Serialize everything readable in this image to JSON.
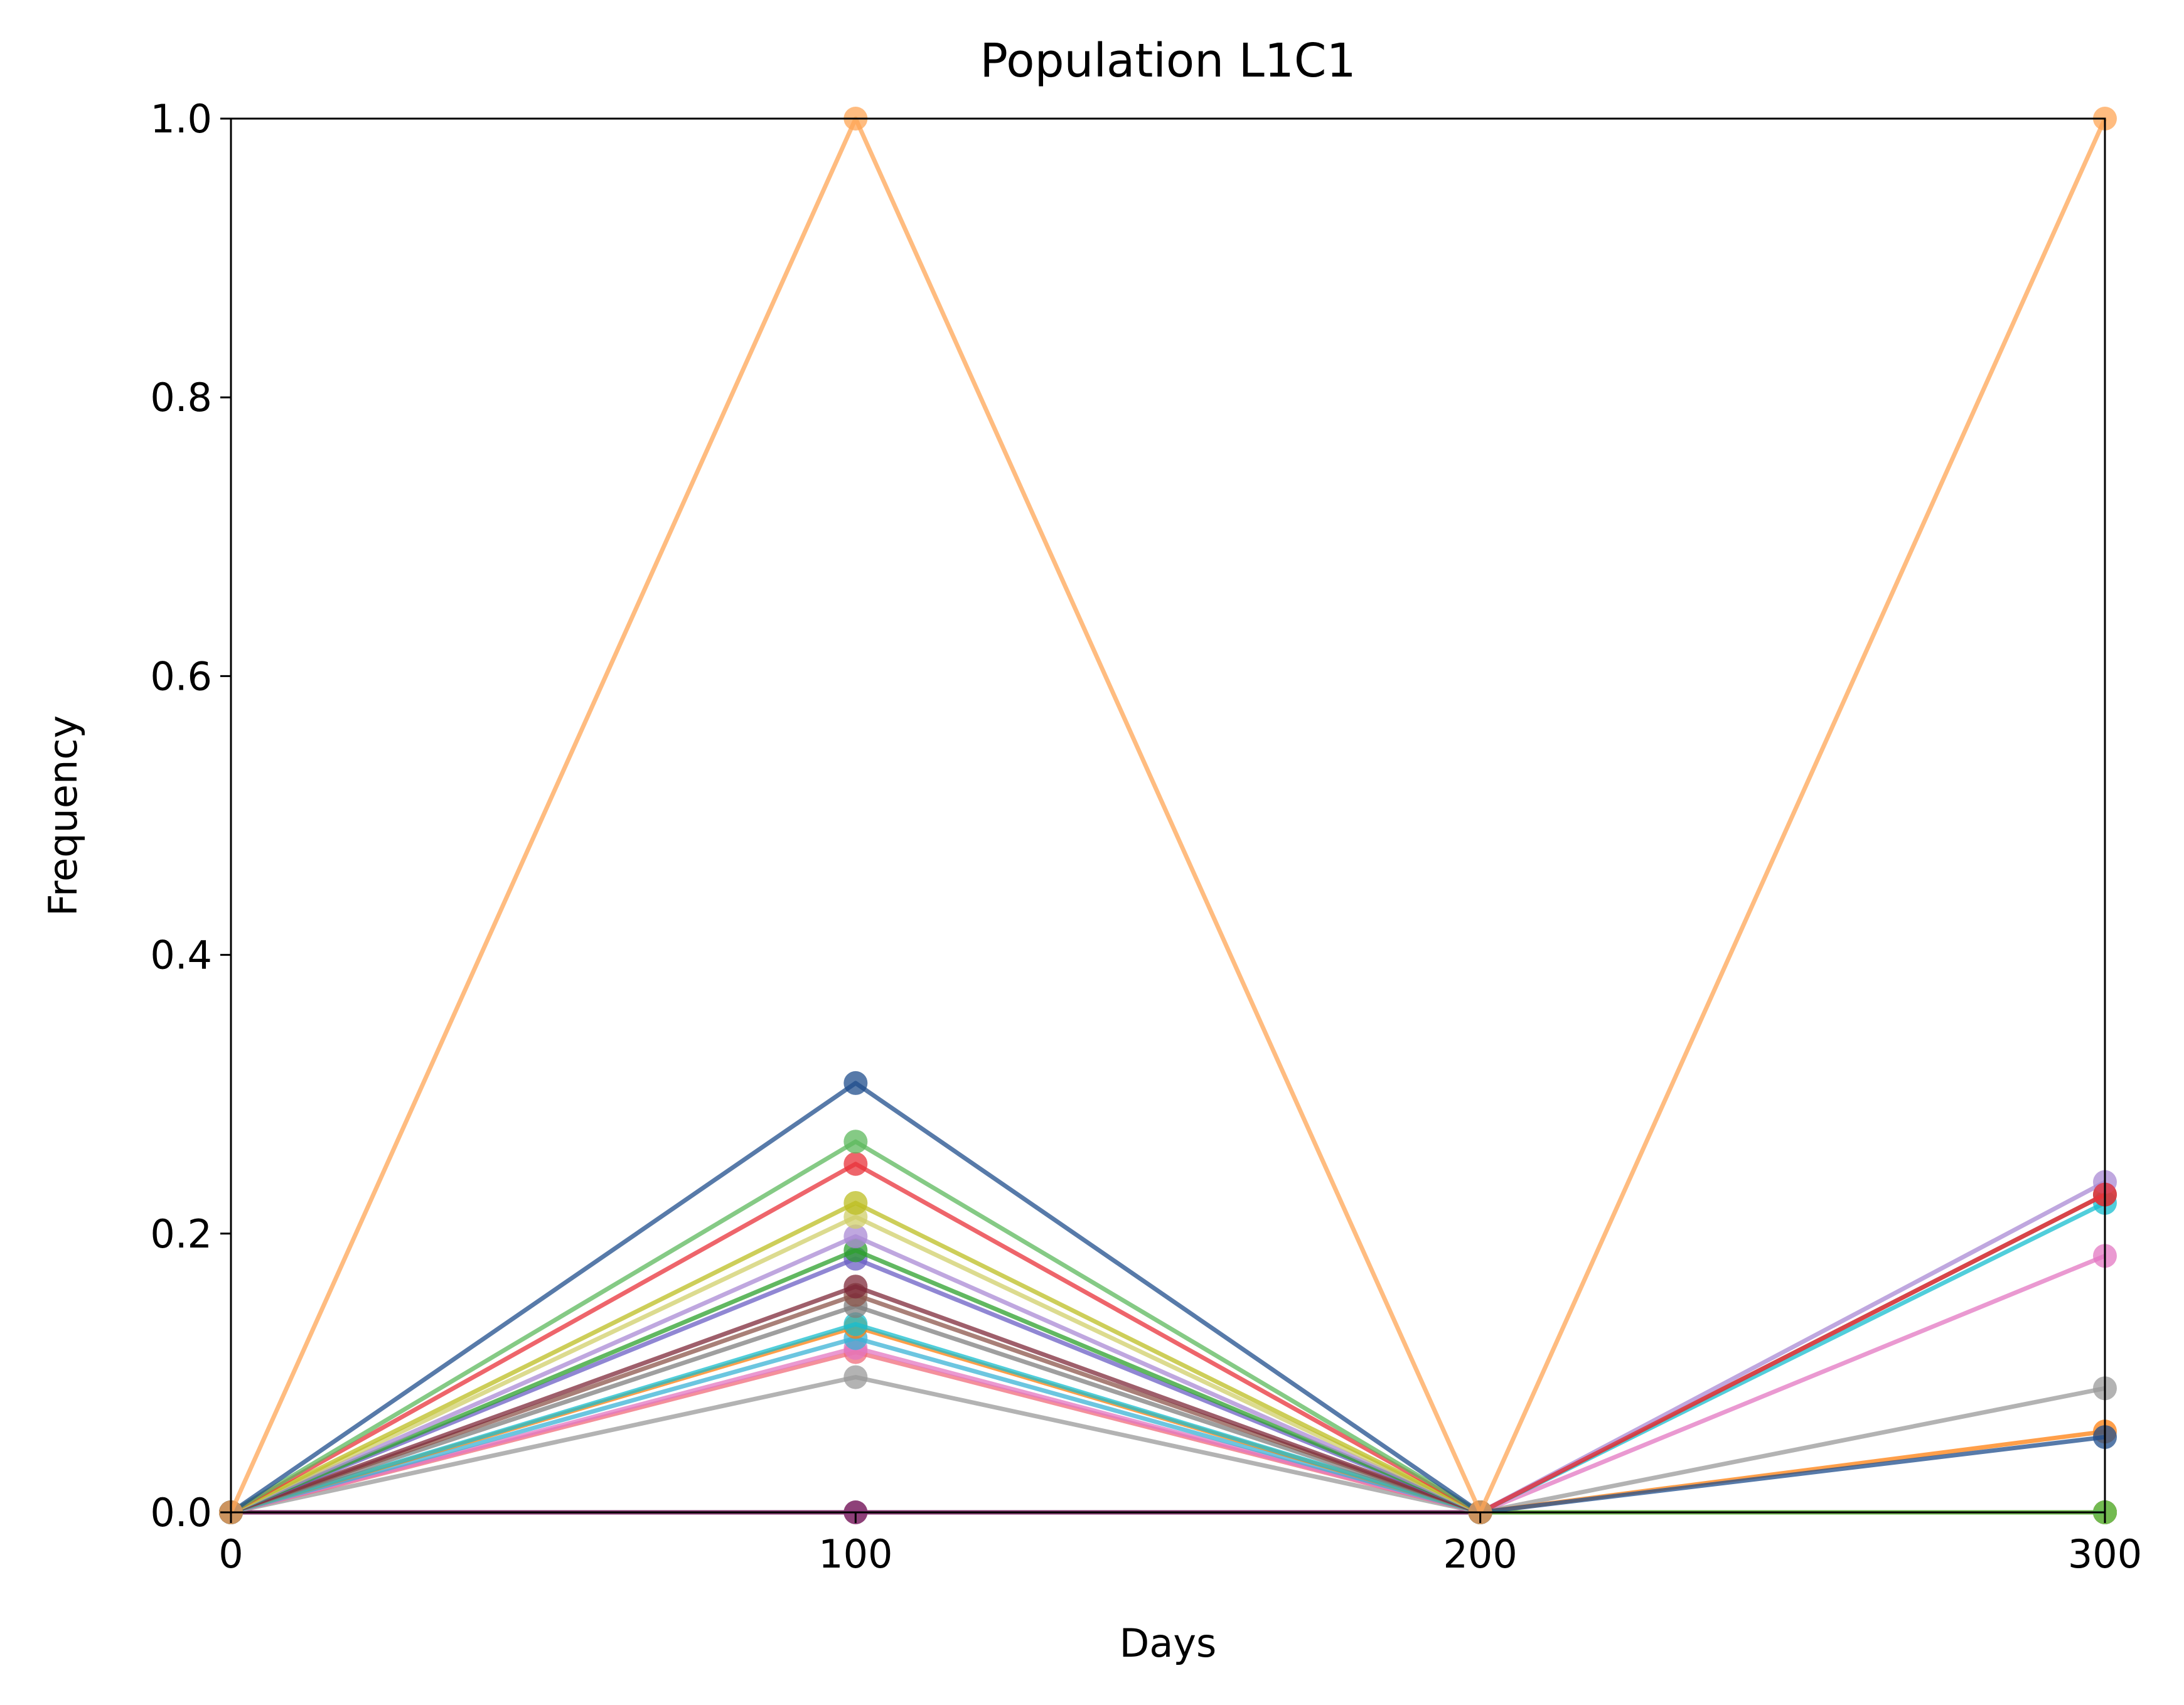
{
  "chart_data": {
    "type": "line",
    "title": "Population L1C1",
    "xlabel": "Days",
    "ylabel": "Frequency",
    "xlim": [
      0,
      300
    ],
    "ylim": [
      0,
      1.0
    ],
    "x": [
      0,
      100,
      200,
      300
    ],
    "xticks": [
      "0",
      "100",
      "200",
      "300"
    ],
    "yticks": [
      "0.0",
      "0.2",
      "0.4",
      "0.6",
      "0.8",
      "1.0"
    ],
    "grid": false,
    "legend": "none",
    "series": [
      {
        "color": "#ffa556",
        "values": [
          0,
          1.0,
          0,
          1.0
        ]
      },
      {
        "color": "#1f4e8c",
        "values": [
          0,
          0.308,
          0,
          0.054
        ]
      },
      {
        "color": "#5cb85c",
        "values": [
          0,
          0.266,
          0,
          0.0
        ]
      },
      {
        "color": "#e8313a",
        "values": [
          0,
          0.25,
          0,
          0.228
        ]
      },
      {
        "color": "#bcbd22",
        "values": [
          0,
          0.222,
          0,
          0.0
        ]
      },
      {
        "color": "#d0cf6a",
        "values": [
          0,
          0.212,
          0,
          0.0
        ]
      },
      {
        "color": "#a98ad4",
        "values": [
          0,
          0.198,
          0,
          0.237
        ]
      },
      {
        "color": "#2ca02c",
        "values": [
          0,
          0.188,
          0,
          0.0
        ]
      },
      {
        "color": "#6b5fc4",
        "values": [
          0,
          0.182,
          0,
          0.0
        ]
      },
      {
        "color": "#7f2a3a",
        "values": [
          0,
          0.162,
          0,
          0.0
        ]
      },
      {
        "color": "#8c564b",
        "values": [
          0,
          0.156,
          0,
          0.228
        ]
      },
      {
        "color": "#7f7f7f",
        "values": [
          0,
          0.148,
          0,
          0.0
        ]
      },
      {
        "color": "#17becf",
        "values": [
          0,
          0.135,
          0,
          0.222
        ]
      },
      {
        "color": "#ff7f0e",
        "values": [
          0,
          0.133,
          0,
          0.058
        ]
      },
      {
        "color": "#3bb3d6",
        "values": [
          0,
          0.125,
          0,
          0.0
        ]
      },
      {
        "color": "#e377c2",
        "values": [
          0,
          0.118,
          0,
          0.184
        ]
      },
      {
        "color": "#f06b7a",
        "values": [
          0,
          0.115,
          0,
          0.0
        ]
      },
      {
        "color": "#999999",
        "values": [
          0,
          0.097,
          0,
          0.089
        ]
      },
      {
        "color": "#8e3a7d",
        "values": [
          0,
          0.0,
          0,
          0.0
        ]
      },
      {
        "color": "#6a1f3a",
        "values": [
          0,
          0.0,
          0,
          0.0
        ]
      }
    ]
  }
}
